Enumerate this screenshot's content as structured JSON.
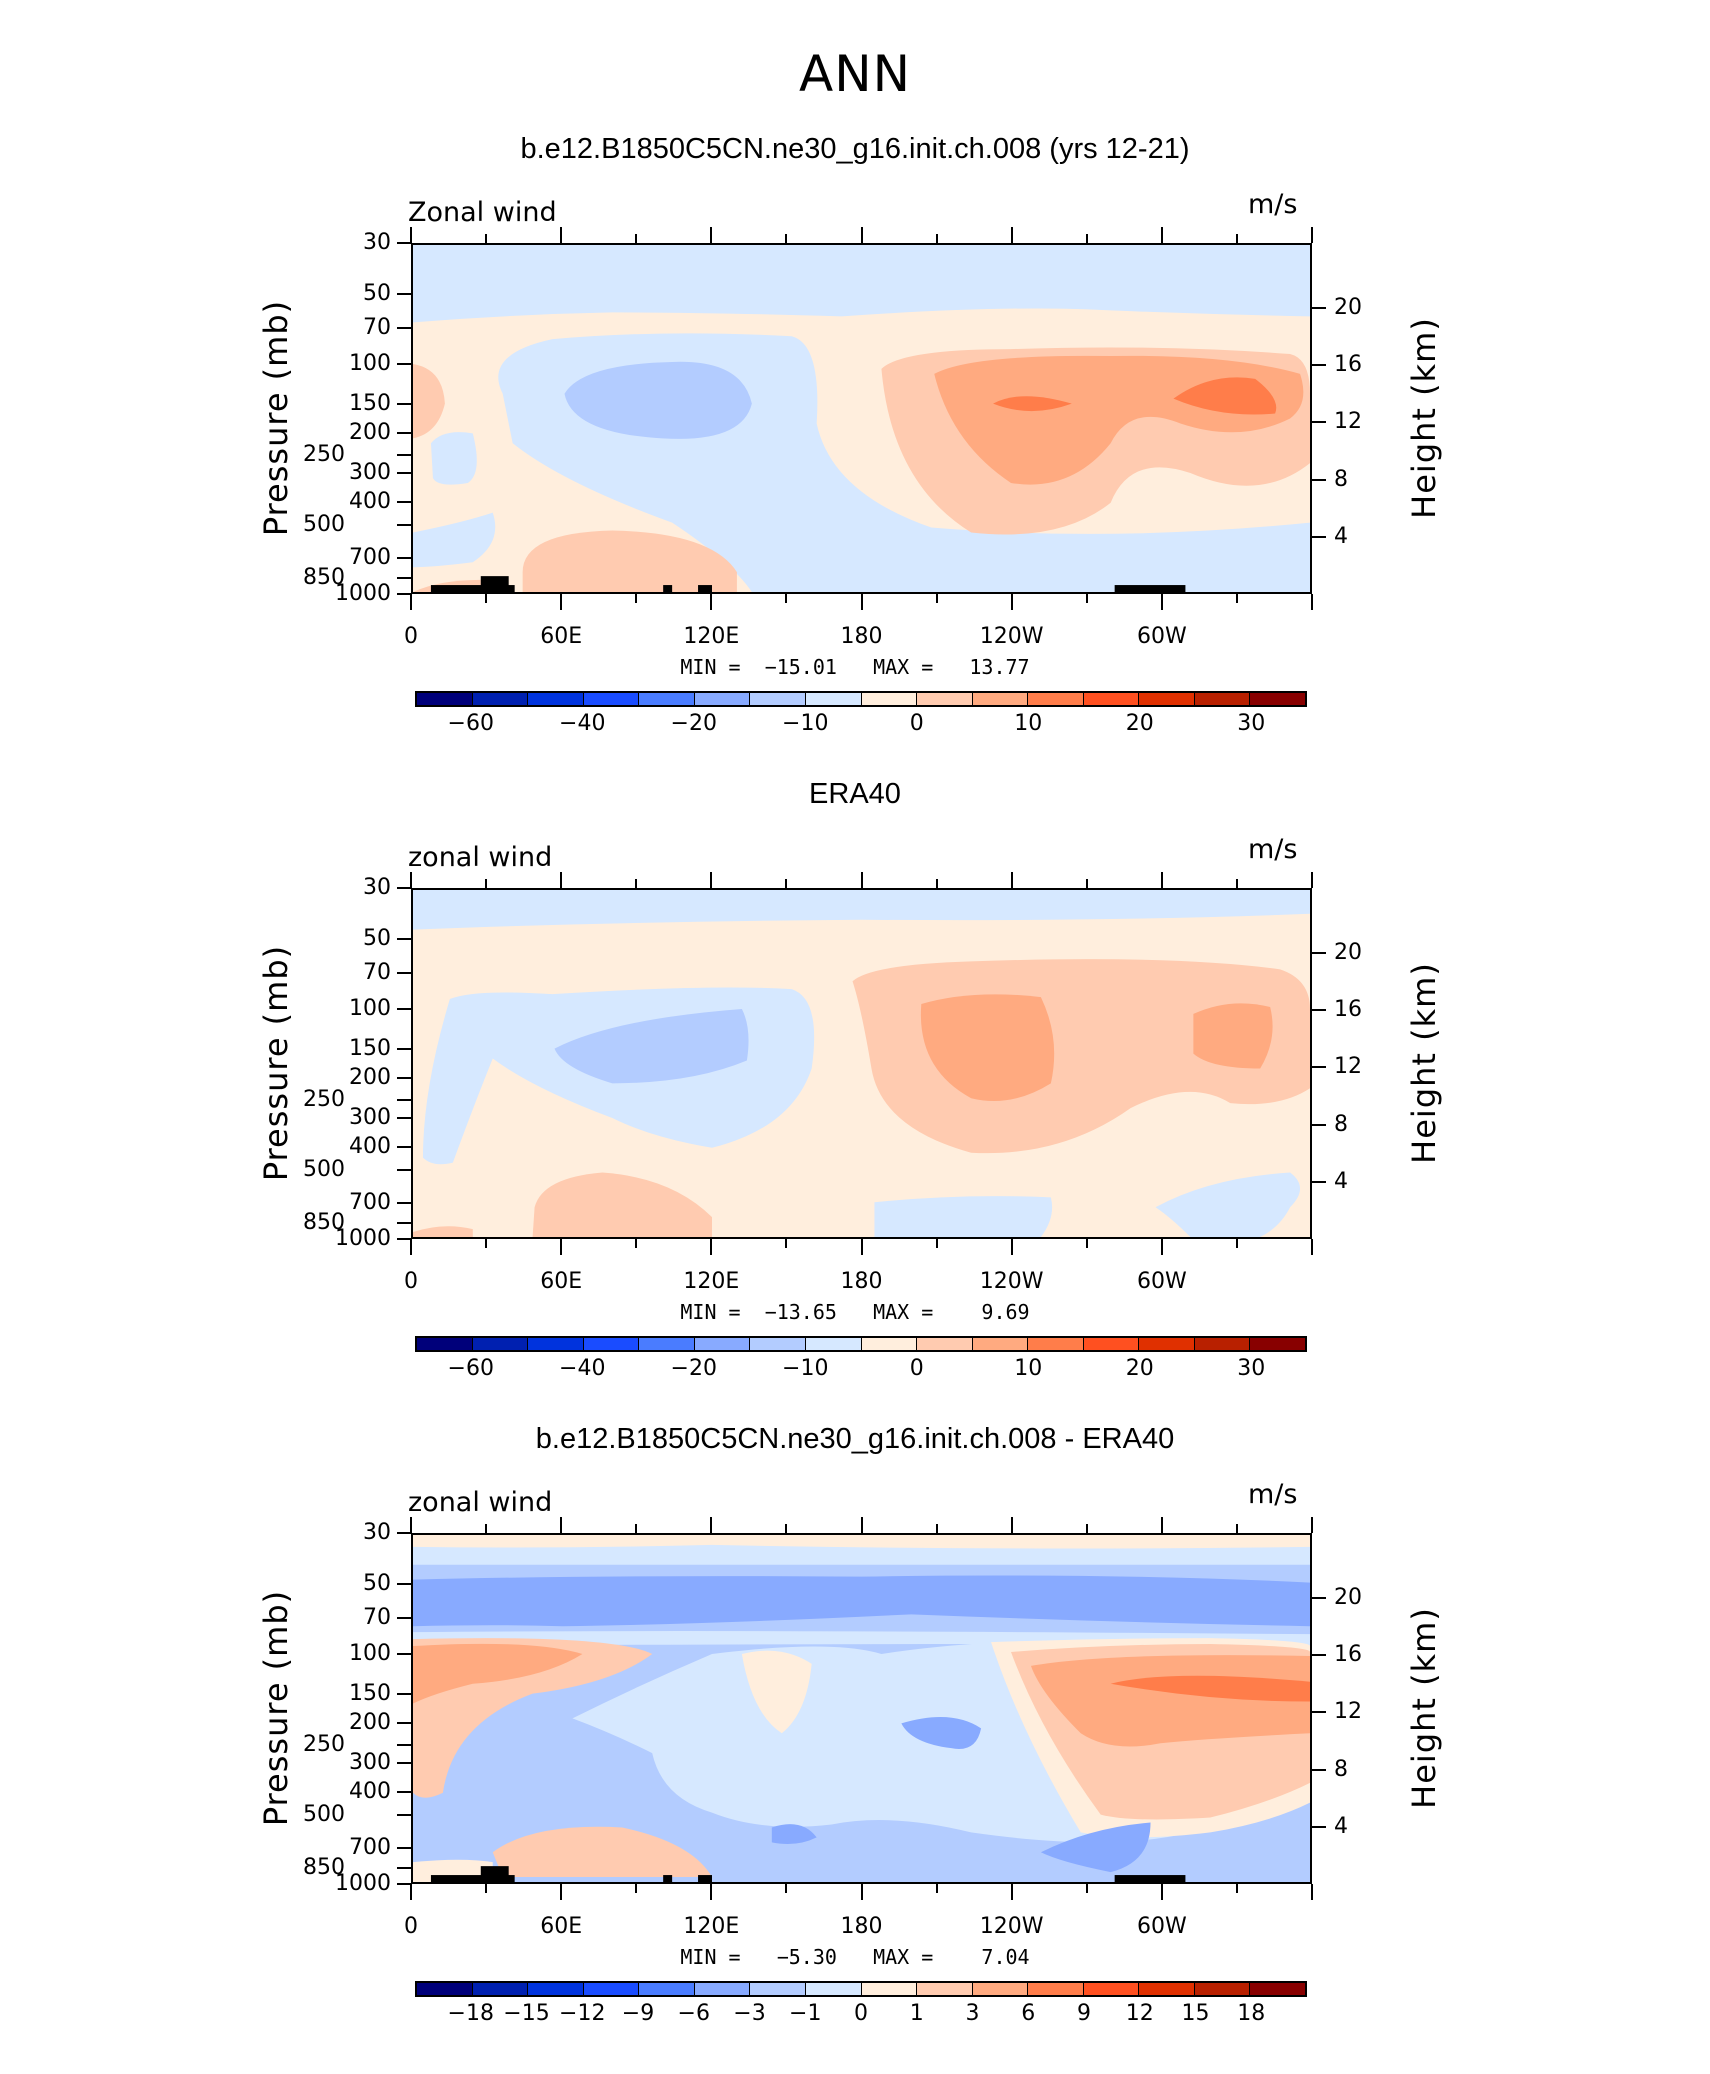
{
  "title": "ANN",
  "chart_data": [
    {
      "type": "heatmap",
      "subtype": "filled-contour latitude-pressure",
      "title": "b.e12.B1850C5CN.ne30_g16.init.ch.008 (yrs 12-21)",
      "variable": "Zonal wind",
      "units": "m/s",
      "ylabel": "Pressure (mb)",
      "y2label": "Height (km)",
      "min_text": "MIN =  −15.01",
      "max_text": "MAX =   13.77",
      "colorbar_labels": [
        "−60",
        "",
        "−40",
        "",
        "−20",
        "",
        "−10",
        "",
        "0",
        "",
        "10",
        "",
        "20",
        "",
        "30"
      ]
    },
    {
      "type": "heatmap",
      "subtype": "filled-contour latitude-pressure",
      "title": "ERA40",
      "variable": "zonal wind",
      "units": "m/s",
      "ylabel": "Pressure (mb)",
      "y2label": "Height (km)",
      "min_text": "MIN =  −13.65",
      "max_text": "MAX =    9.69",
      "colorbar_labels": [
        "−60",
        "",
        "−40",
        "",
        "−20",
        "",
        "−10",
        "",
        "0",
        "",
        "10",
        "",
        "20",
        "",
        "30"
      ]
    },
    {
      "type": "heatmap",
      "subtype": "filled-contour latitude-pressure",
      "title": "b.e12.B1850C5CN.ne30_g16.init.ch.008 - ERA40",
      "variable": "zonal wind",
      "units": "m/s",
      "ylabel": "Pressure (mb)",
      "y2label": "Height (km)",
      "min_text": "MIN =   −5.30",
      "max_text": "MAX =    7.04",
      "colorbar_labels": [
        "−18",
        "−15",
        "−12",
        "−9",
        "−6",
        "−3",
        "−1",
        "0",
        "1",
        "3",
        "6",
        "9",
        "12",
        "15",
        "18"
      ]
    }
  ],
  "axes": {
    "x_ticks": [
      {
        "lon": 0,
        "label": "0"
      },
      {
        "lon": 60,
        "label": "60E"
      },
      {
        "lon": 120,
        "label": "120E"
      },
      {
        "lon": 180,
        "label": "180"
      },
      {
        "lon": 240,
        "label": "120W"
      },
      {
        "lon": 300,
        "label": "60W"
      }
    ],
    "x_range": [
      0,
      360
    ],
    "pressure_ticks": [
      30,
      50,
      70,
      100,
      150,
      200,
      250,
      300,
      400,
      500,
      700,
      850,
      1000
    ],
    "pressure_range": [
      1000,
      30
    ],
    "y_scale": "log",
    "height_ticks": [
      20,
      16,
      12,
      8,
      4
    ]
  },
  "colors": [
    "#00007a",
    "#0020b0",
    "#0033dd",
    "#1a4cff",
    "#4a7cff",
    "#88aaff",
    "#b3ccff",
    "#d6e8ff",
    "#ffeedd",
    "#ffcbb0",
    "#ffaa80",
    "#ff7d4a",
    "#ff5020",
    "#e03000",
    "#b82000",
    "#880000"
  ]
}
